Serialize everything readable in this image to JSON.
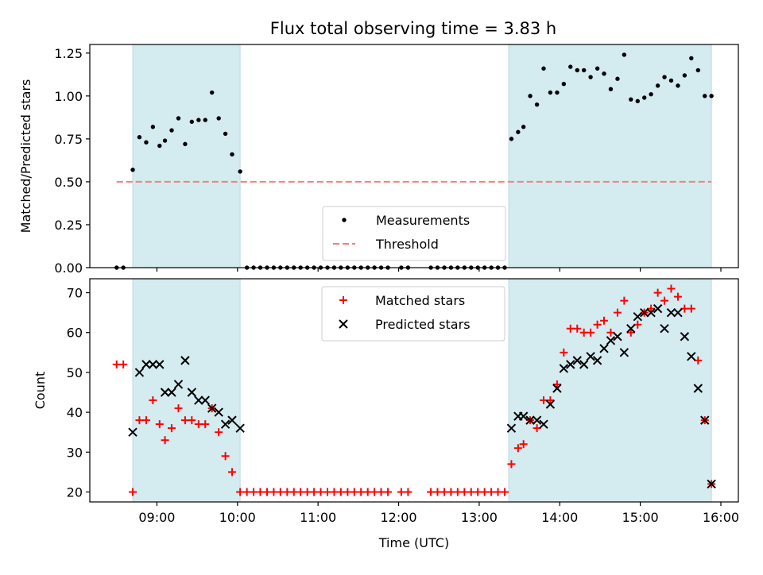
{
  "title": "Flux total observing time = 3.83 h",
  "chart_data": [
    {
      "type": "scatter",
      "panel": "top",
      "ylabel": "Matched/Predicted stars",
      "xlim": [
        8.167,
        16.217
      ],
      "ylim": [
        0,
        1.3
      ],
      "yticks": [
        0,
        0.25,
        0.5,
        0.75,
        1.0,
        1.25
      ],
      "ytick_labels": [
        "0.00",
        "0.25",
        "0.50",
        "0.75",
        "1.00",
        "1.25"
      ],
      "shaded_intervals": [
        [
          8.7,
          10.033
        ],
        [
          13.367,
          15.883
        ]
      ],
      "shade_color": "#d4ebf0",
      "legend": {
        "placement": "lower center",
        "entries": [
          {
            "label": "Measurements",
            "marker": "dot",
            "color": "#000000"
          },
          {
            "label": "Threshold",
            "marker": "dashed-line",
            "color": "#f08080"
          }
        ]
      },
      "series": [
        {
          "name": "Measurements",
          "marker": "dot",
          "color": "#000000",
          "x": [
            8.5,
            8.583,
            8.7,
            8.783,
            8.867,
            8.95,
            9.033,
            9.1,
            9.183,
            9.267,
            9.35,
            9.433,
            9.517,
            9.6,
            9.683,
            9.767,
            9.85,
            9.933,
            10.033,
            10.117,
            10.2,
            10.283,
            10.367,
            10.45,
            10.533,
            10.617,
            10.7,
            10.783,
            10.867,
            10.95,
            11.033,
            11.117,
            11.2,
            11.283,
            11.367,
            11.45,
            11.533,
            11.617,
            11.7,
            11.783,
            11.867,
            12.033,
            12.117,
            12.4,
            12.483,
            12.567,
            12.65,
            12.733,
            12.817,
            12.9,
            12.983,
            13.067,
            13.15,
            13.233,
            13.317,
            13.4,
            13.483,
            13.55,
            13.633,
            13.717,
            13.8,
            13.883,
            13.967,
            14.05,
            14.133,
            14.217,
            14.3,
            14.383,
            14.467,
            14.55,
            14.633,
            14.717,
            14.8,
            14.883,
            14.967,
            15.05,
            15.133,
            15.217,
            15.3,
            15.383,
            15.467,
            15.55,
            15.633,
            15.717,
            15.8,
            15.883
          ],
          "y": [
            0,
            0,
            0.57,
            0.76,
            0.73,
            0.82,
            0.71,
            0.74,
            0.8,
            0.87,
            0.72,
            0.85,
            0.86,
            0.86,
            1.02,
            0.87,
            0.78,
            0.66,
            0.56,
            0,
            0,
            0,
            0,
            0,
            0,
            0,
            0,
            0,
            0,
            0,
            0,
            0,
            0,
            0,
            0,
            0,
            0,
            0,
            0,
            0,
            0,
            0,
            0,
            0,
            0,
            0,
            0,
            0,
            0,
            0,
            0,
            0,
            0,
            0,
            0,
            0.75,
            0.79,
            0.82,
            1.0,
            0.95,
            1.16,
            1.02,
            1.02,
            1.07,
            1.17,
            1.15,
            1.15,
            1.11,
            1.16,
            1.13,
            1.04,
            1.1,
            1.24,
            0.98,
            0.97,
            0.99,
            1.01,
            1.06,
            1.11,
            1.09,
            1.06,
            1.12,
            1.22,
            1.15,
            1.0,
            1.0
          ]
        },
        {
          "name": "Threshold",
          "marker": "dashed-line",
          "color": "#f08080",
          "x": [
            8.5,
            15.883
          ],
          "y": [
            0.5,
            0.5
          ]
        }
      ]
    },
    {
      "type": "scatter",
      "panel": "bottom",
      "xlabel": "Time (UTC)",
      "ylabel": "Count",
      "xlim": [
        8.167,
        16.217
      ],
      "ylim": [
        17.5,
        73.5
      ],
      "yticks": [
        20,
        30,
        40,
        50,
        60,
        70
      ],
      "ytick_labels": [
        "20",
        "30",
        "40",
        "50",
        "60",
        "70"
      ],
      "xticks": [
        9,
        10,
        11,
        12,
        13,
        14,
        15,
        16
      ],
      "xtick_labels": [
        "09:00",
        "10:00",
        "11:00",
        "12:00",
        "13:00",
        "14:00",
        "15:00",
        "16:00"
      ],
      "shaded_intervals": [
        [
          8.7,
          10.033
        ],
        [
          13.367,
          15.883
        ]
      ],
      "shade_color": "#d4ebf0",
      "legend": {
        "placement": "upper center",
        "entries": [
          {
            "label": "Matched stars",
            "marker": "plus",
            "color": "#ff0000"
          },
          {
            "label": "Predicted stars",
            "marker": "x",
            "color": "#000000"
          }
        ]
      },
      "series": [
        {
          "name": "Matched stars",
          "marker": "plus",
          "color": "#ff0000",
          "x": [
            8.5,
            8.583,
            8.7,
            8.783,
            8.867,
            8.95,
            9.033,
            9.1,
            9.183,
            9.267,
            9.35,
            9.433,
            9.517,
            9.6,
            9.683,
            9.767,
            9.85,
            9.933,
            10.033,
            10.117,
            10.2,
            10.283,
            10.367,
            10.45,
            10.533,
            10.617,
            10.7,
            10.783,
            10.867,
            10.95,
            11.033,
            11.117,
            11.2,
            11.283,
            11.367,
            11.45,
            11.533,
            11.617,
            11.7,
            11.783,
            11.867,
            12.033,
            12.117,
            12.4,
            12.483,
            12.567,
            12.65,
            12.733,
            12.817,
            12.9,
            12.983,
            13.067,
            13.15,
            13.233,
            13.317,
            13.4,
            13.483,
            13.55,
            13.633,
            13.717,
            13.8,
            13.883,
            13.967,
            14.05,
            14.133,
            14.217,
            14.3,
            14.383,
            14.467,
            14.55,
            14.633,
            14.717,
            14.8,
            14.883,
            14.967,
            15.05,
            15.133,
            15.217,
            15.3,
            15.383,
            15.467,
            15.55,
            15.633,
            15.717,
            15.8,
            15.883
          ],
          "y": [
            52,
            52,
            20,
            38,
            38,
            43,
            37,
            33,
            36,
            41,
            38,
            38,
            37,
            37,
            41,
            35,
            29,
            25,
            20,
            20,
            20,
            20,
            20,
            20,
            20,
            20,
            20,
            20,
            20,
            20,
            20,
            20,
            20,
            20,
            20,
            20,
            20,
            20,
            20,
            20,
            20,
            20,
            20,
            20,
            20,
            20,
            20,
            20,
            20,
            20,
            20,
            20,
            20,
            20,
            20,
            27,
            31,
            32,
            38,
            36,
            43,
            43,
            47,
            55,
            61,
            61,
            60,
            60,
            62,
            63,
            60,
            65,
            68,
            60,
            62,
            65,
            66,
            70,
            68,
            71,
            69,
            66,
            66,
            53,
            38,
            22
          ]
        },
        {
          "name": "Predicted stars",
          "marker": "x",
          "color": "#000000",
          "x": [
            8.7,
            8.783,
            8.867,
            8.95,
            9.033,
            9.1,
            9.183,
            9.267,
            9.35,
            9.433,
            9.517,
            9.6,
            9.683,
            9.767,
            9.85,
            9.933,
            10.033,
            13.4,
            13.483,
            13.55,
            13.633,
            13.717,
            13.8,
            13.883,
            13.967,
            14.05,
            14.133,
            14.217,
            14.3,
            14.383,
            14.467,
            14.55,
            14.633,
            14.717,
            14.8,
            14.883,
            14.967,
            15.05,
            15.133,
            15.217,
            15.3,
            15.383,
            15.467,
            15.55,
            15.633,
            15.717,
            15.8,
            15.883
          ],
          "y": [
            35,
            50,
            52,
            52,
            52,
            45,
            45,
            47,
            53,
            45,
            43,
            43,
            41,
            40,
            37,
            38,
            36,
            36,
            39,
            39,
            38,
            38,
            37,
            42,
            46,
            51,
            52,
            53,
            52,
            54,
            53,
            56,
            58,
            59,
            55,
            61,
            64,
            65,
            65,
            66,
            61,
            65,
            65,
            59,
            54,
            46,
            38,
            22
          ]
        }
      ]
    }
  ]
}
